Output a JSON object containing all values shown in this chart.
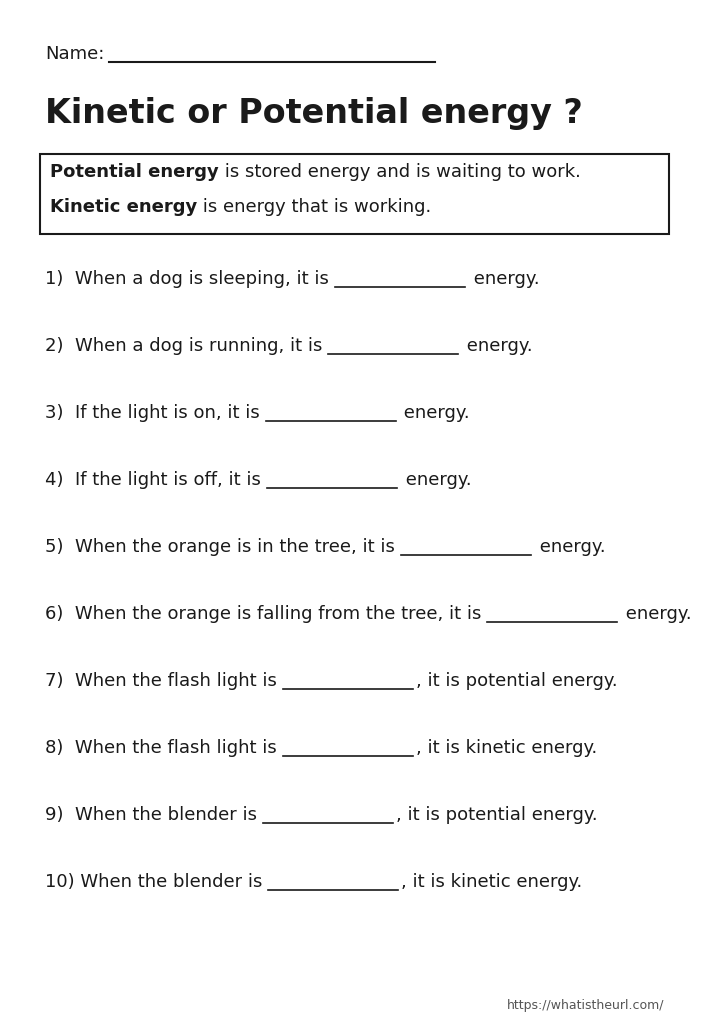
{
  "title": "Kinetic or Potential energy ?",
  "name_label": "Name:",
  "box_text_line1_bold": "Potential energy",
  "box_text_line1_rest": " is stored energy and is waiting to work.",
  "box_text_line2_bold": "Kinetic energy",
  "box_text_line2_rest": " is energy that is working.",
  "questions_left": [
    "1)  When a dog is sleeping, it is ",
    "2)  When a dog is running, it is ",
    "3)  If the light is on, it is ",
    "4)  If the light is off, it is ",
    "5)  When the orange is in the tree, it is ",
    "6)  When the orange is falling from the tree, it is ",
    "7)  When the flash light is ",
    "8)  When the flash light is ",
    "9)  When the blender is ",
    "10) When the blender is "
  ],
  "questions_right": [
    " energy.",
    " energy.",
    " energy.",
    " energy.",
    " energy.",
    " energy.",
    ", it is potential energy.",
    ", it is kinetic energy.",
    ", it is potential energy.",
    ", it is kinetic energy."
  ],
  "footer": "https://whatistheurl.com/",
  "bg_color": "#ffffff",
  "text_color": "#1a1a1a",
  "title_color": "#1a1a1a",
  "footer_color": "#555555",
  "font_size_title": 24,
  "font_size_name": 13,
  "font_size_box": 13,
  "font_size_questions": 13,
  "font_size_footer": 9,
  "line_color": "#1a1a1a",
  "box_border_color": "#1a1a1a"
}
